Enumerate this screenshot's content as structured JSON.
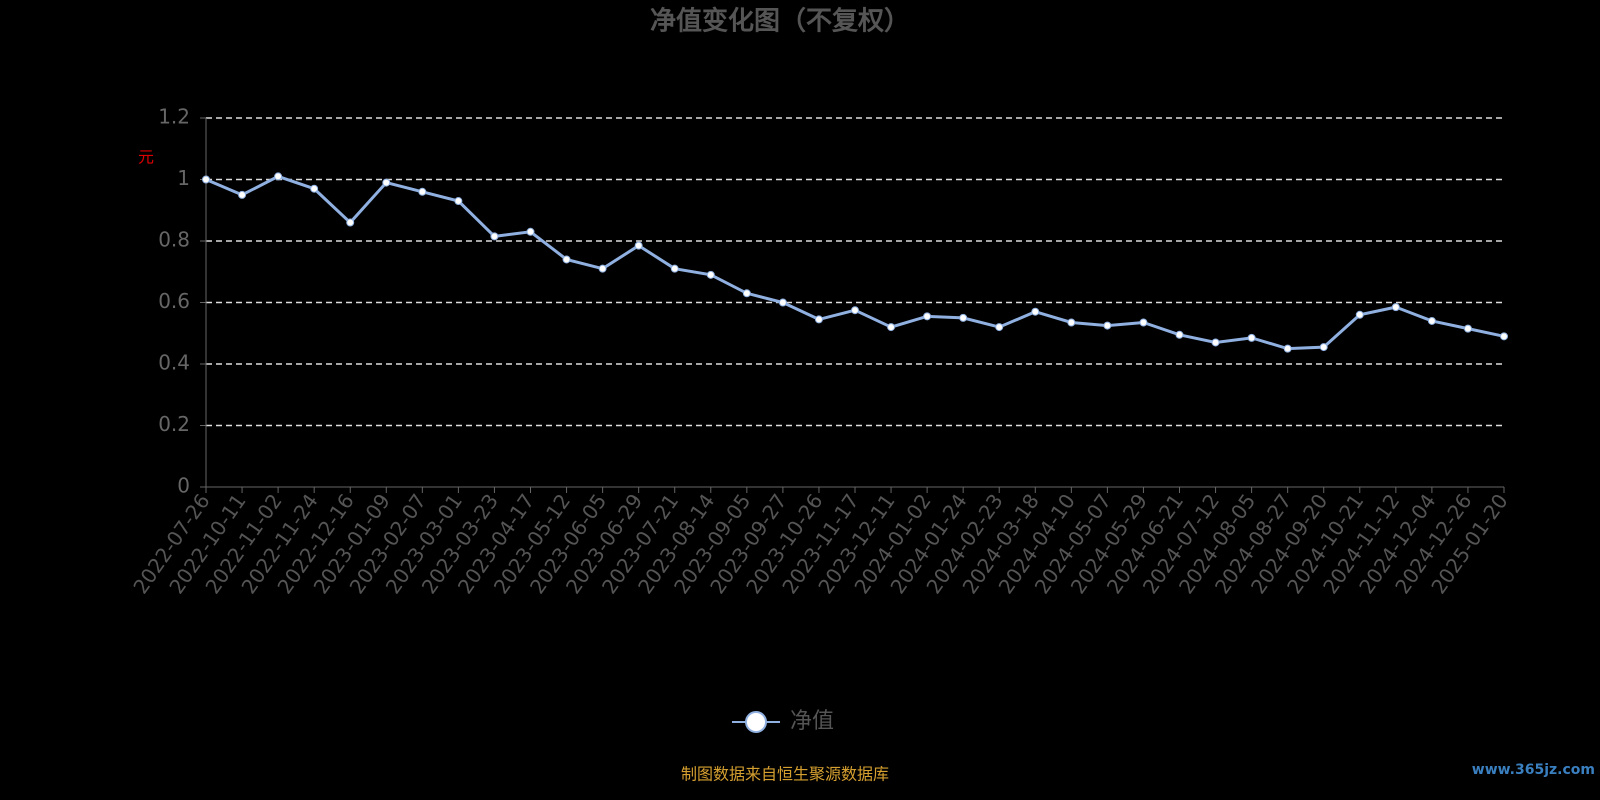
{
  "chart_data": {
    "type": "line",
    "title": "净值变化图（不复权）",
    "y_label": "元",
    "categories": [
      "2022-07-26",
      "2022-10-11",
      "2022-11-02",
      "2022-11-24",
      "2022-12-16",
      "2023-01-09",
      "2023-02-07",
      "2023-03-01",
      "2023-03-23",
      "2023-04-17",
      "2023-05-12",
      "2023-06-05",
      "2023-06-29",
      "2023-07-21",
      "2023-08-14",
      "2023-09-05",
      "2023-09-27",
      "2023-10-26",
      "2023-11-17",
      "2023-12-11",
      "2024-01-02",
      "2024-01-24",
      "2024-02-23",
      "2024-03-18",
      "2024-04-10",
      "2024-05-07",
      "2024-05-29",
      "2024-06-21",
      "2024-07-12",
      "2024-08-05",
      "2024-08-27",
      "2024-09-20",
      "2024-10-21",
      "2024-11-12",
      "2024-12-04",
      "2024-12-26",
      "2025-01-20"
    ],
    "series": [
      {
        "name": "净值",
        "color": "#8fb0e0",
        "values": [
          1.0,
          0.95,
          1.01,
          0.97,
          0.86,
          0.99,
          0.96,
          0.93,
          0.815,
          0.83,
          0.74,
          0.71,
          0.785,
          0.71,
          0.69,
          0.63,
          0.6,
          0.545,
          0.575,
          0.52,
          0.555,
          0.55,
          0.52,
          0.57,
          0.535,
          0.525,
          0.535,
          0.495,
          0.47,
          0.485,
          0.45,
          0.455,
          0.56,
          0.585,
          0.54,
          0.515,
          0.49
        ]
      }
    ],
    "ylim": [
      0,
      1.2
    ],
    "yticks": [
      0,
      0.2,
      0.4,
      0.6,
      0.8,
      1,
      1.2
    ],
    "grid": true,
    "legend": "bottom",
    "source": "制图数据来自恒生聚源数据库",
    "watermark": "www.365jz.com"
  }
}
